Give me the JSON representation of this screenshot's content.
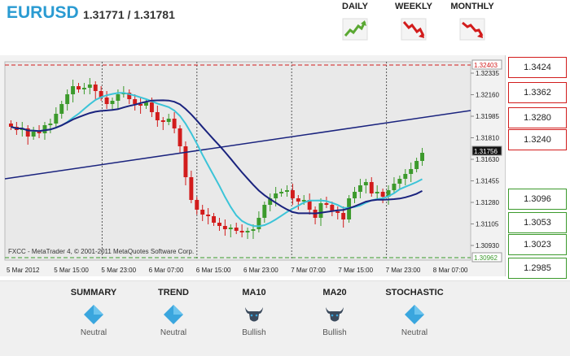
{
  "header": {
    "pair": "EURUSD",
    "quote": "1.31771 / 1.31781",
    "timeframes": [
      {
        "label": "DAILY",
        "direction": "up",
        "color": "#5aa832"
      },
      {
        "label": "WEEKLY",
        "direction": "down",
        "color": "#d21c1c"
      },
      {
        "label": "MONTHLY",
        "direction": "down",
        "color": "#d21c1c"
      }
    ]
  },
  "chart": {
    "watermark": "FXCC - MetaTrader 4, © 2001-2011 MetaQuotes Software Corp.",
    "y_ticks": [
      "1.32335",
      "1.32160",
      "1.31985",
      "1.31810",
      "1.31630",
      "1.31455",
      "1.31280",
      "1.31105",
      "1.30930"
    ],
    "x_ticks": [
      "5 Mar 2012",
      "5 Mar 15:00",
      "5 Mar 23:00",
      "6 Mar 07:00",
      "6 Mar 15:00",
      "6 Mar 23:00",
      "7 Mar 07:00",
      "7 Mar 15:00",
      "7 Mar 23:00",
      "8 Mar 07:00"
    ],
    "top_level_label": "1.32403",
    "bottom_level_label": "1.30962",
    "current_price_label": "1.31756",
    "colors": {
      "bull": "#3c9a2c",
      "bear": "#d21c1c",
      "ma10": "#3cc4d8",
      "ma20": "#1a237e",
      "trend": "#1a237e"
    }
  },
  "levels": {
    "resistance": [
      "1.3424",
      "1.3362",
      "1.3280",
      "1.3240"
    ],
    "support": [
      "1.3096",
      "1.3053",
      "1.3023",
      "1.2985"
    ]
  },
  "indicators": [
    {
      "title": "SUMMARY",
      "icon": "diamond-icon",
      "value": "Neutral"
    },
    {
      "title": "TREND",
      "icon": "diamond-icon",
      "value": "Neutral"
    },
    {
      "title": "MA10",
      "icon": "bull-icon",
      "value": "Bullish"
    },
    {
      "title": "MA20",
      "icon": "bull-icon",
      "value": "Bullish"
    },
    {
      "title": "STOCHASTIC",
      "icon": "diamond-icon",
      "value": "Neutral"
    }
  ]
}
